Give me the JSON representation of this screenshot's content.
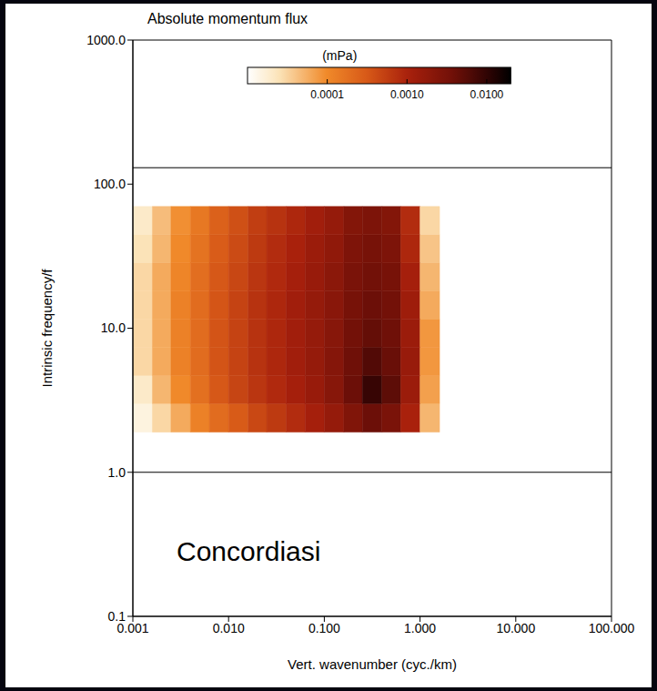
{
  "chart_data": {
    "type": "heatmap",
    "title": "Absolute momentum flux",
    "x_label": "Vert. wavenumber (cyc./km)",
    "y_label": "Intrinsic frequency/f",
    "log": true,
    "grid": false,
    "xlim": [
      0.001,
      100
    ],
    "ylim": [
      0.1,
      1000
    ],
    "xticks": [
      0.001,
      {
        "value": 0.01,
        "label": "0.010"
      },
      {
        "value": 0.1,
        "label": "0.100"
      },
      {
        "value": 1,
        "label": "1.000"
      },
      {
        "value": 10,
        "label": "10.000"
      },
      {
        "value": 100,
        "label": "100.000"
      }
    ],
    "yticks": [
      0.1,
      {
        "value": 1,
        "label": "1.0"
      },
      {
        "value": 10,
        "label": "10.0"
      },
      {
        "value": 100,
        "label": "100.0"
      },
      {
        "value": 1000,
        "label": "1000.0"
      }
    ],
    "x_bins": [
      0.001,
      0.0016,
      0.0025,
      0.004,
      0.0063,
      0.01,
      0.016,
      0.025,
      0.04,
      0.063,
      0.1,
      0.16,
      0.25,
      0.4,
      0.63,
      1.0,
      1.6
    ],
    "y_bins": [
      1.9,
      3.0,
      4.7,
      7.4,
      11.6,
      18.2,
      28.5,
      44.7,
      70
    ],
    "values": [
      [
        1.5e-05,
        3e-05,
        6e-05,
        0.00012,
        0.0002,
        0.0003,
        0.00045,
        0.0006,
        0.0008,
        0.0011,
        0.0016,
        0.0026,
        0.004,
        0.003,
        0.001,
        5e-05
      ],
      [
        2e-05,
        5e-05,
        0.0001,
        0.00018,
        0.00032,
        0.00048,
        0.00065,
        0.00085,
        0.0011,
        0.0015,
        0.0022,
        0.004,
        0.009,
        0.005,
        0.0014,
        7e-05
      ],
      [
        3e-05,
        6e-05,
        0.00012,
        0.0002,
        0.00035,
        0.0005,
        0.0007,
        0.0009,
        0.0012,
        0.0016,
        0.0023,
        0.0038,
        0.006,
        0.0042,
        0.0015,
        8e-05
      ],
      [
        3e-05,
        6e-05,
        0.00012,
        0.0002,
        0.00035,
        0.0005,
        0.0007,
        0.0009,
        0.0012,
        0.0016,
        0.0022,
        0.0035,
        0.0045,
        0.0038,
        0.0014,
        8e-05
      ],
      [
        3e-05,
        6e-05,
        0.00012,
        0.0002,
        0.00034,
        0.0005,
        0.0007,
        0.0009,
        0.0012,
        0.0016,
        0.0021,
        0.0032,
        0.004,
        0.0035,
        0.0013,
        6e-05
      ],
      [
        3e-05,
        6e-05,
        0.00011,
        0.00019,
        0.00032,
        0.00046,
        0.00065,
        0.00085,
        0.0011,
        0.0015,
        0.002,
        0.003,
        0.0036,
        0.0032,
        0.0011,
        5e-05
      ],
      [
        2.5e-05,
        5e-05,
        0.0001,
        0.00017,
        0.00029,
        0.00042,
        0.0006,
        0.0008,
        0.001,
        0.0014,
        0.0018,
        0.0027,
        0.0032,
        0.0028,
        0.0009,
        4e-05
      ],
      [
        2e-05,
        4.5e-05,
        9e-05,
        0.00015,
        0.00026,
        0.00038,
        0.00055,
        0.0007,
        0.0009,
        0.0012,
        0.0016,
        0.0024,
        0.0028,
        0.0024,
        0.0008,
        3e-05
      ]
    ],
    "colorbar": {
      "label": "(mPa)",
      "range": [
        1e-05,
        0.02
      ],
      "ticks": [
        0.0001,
        {
          "value": 0.001,
          "label": "0.0010"
        },
        {
          "value": 0.01,
          "label": "0.0100"
        }
      ]
    },
    "hlines": [
      1,
      130
    ],
    "annotations": [
      {
        "text": "Concordiasi"
      }
    ]
  }
}
